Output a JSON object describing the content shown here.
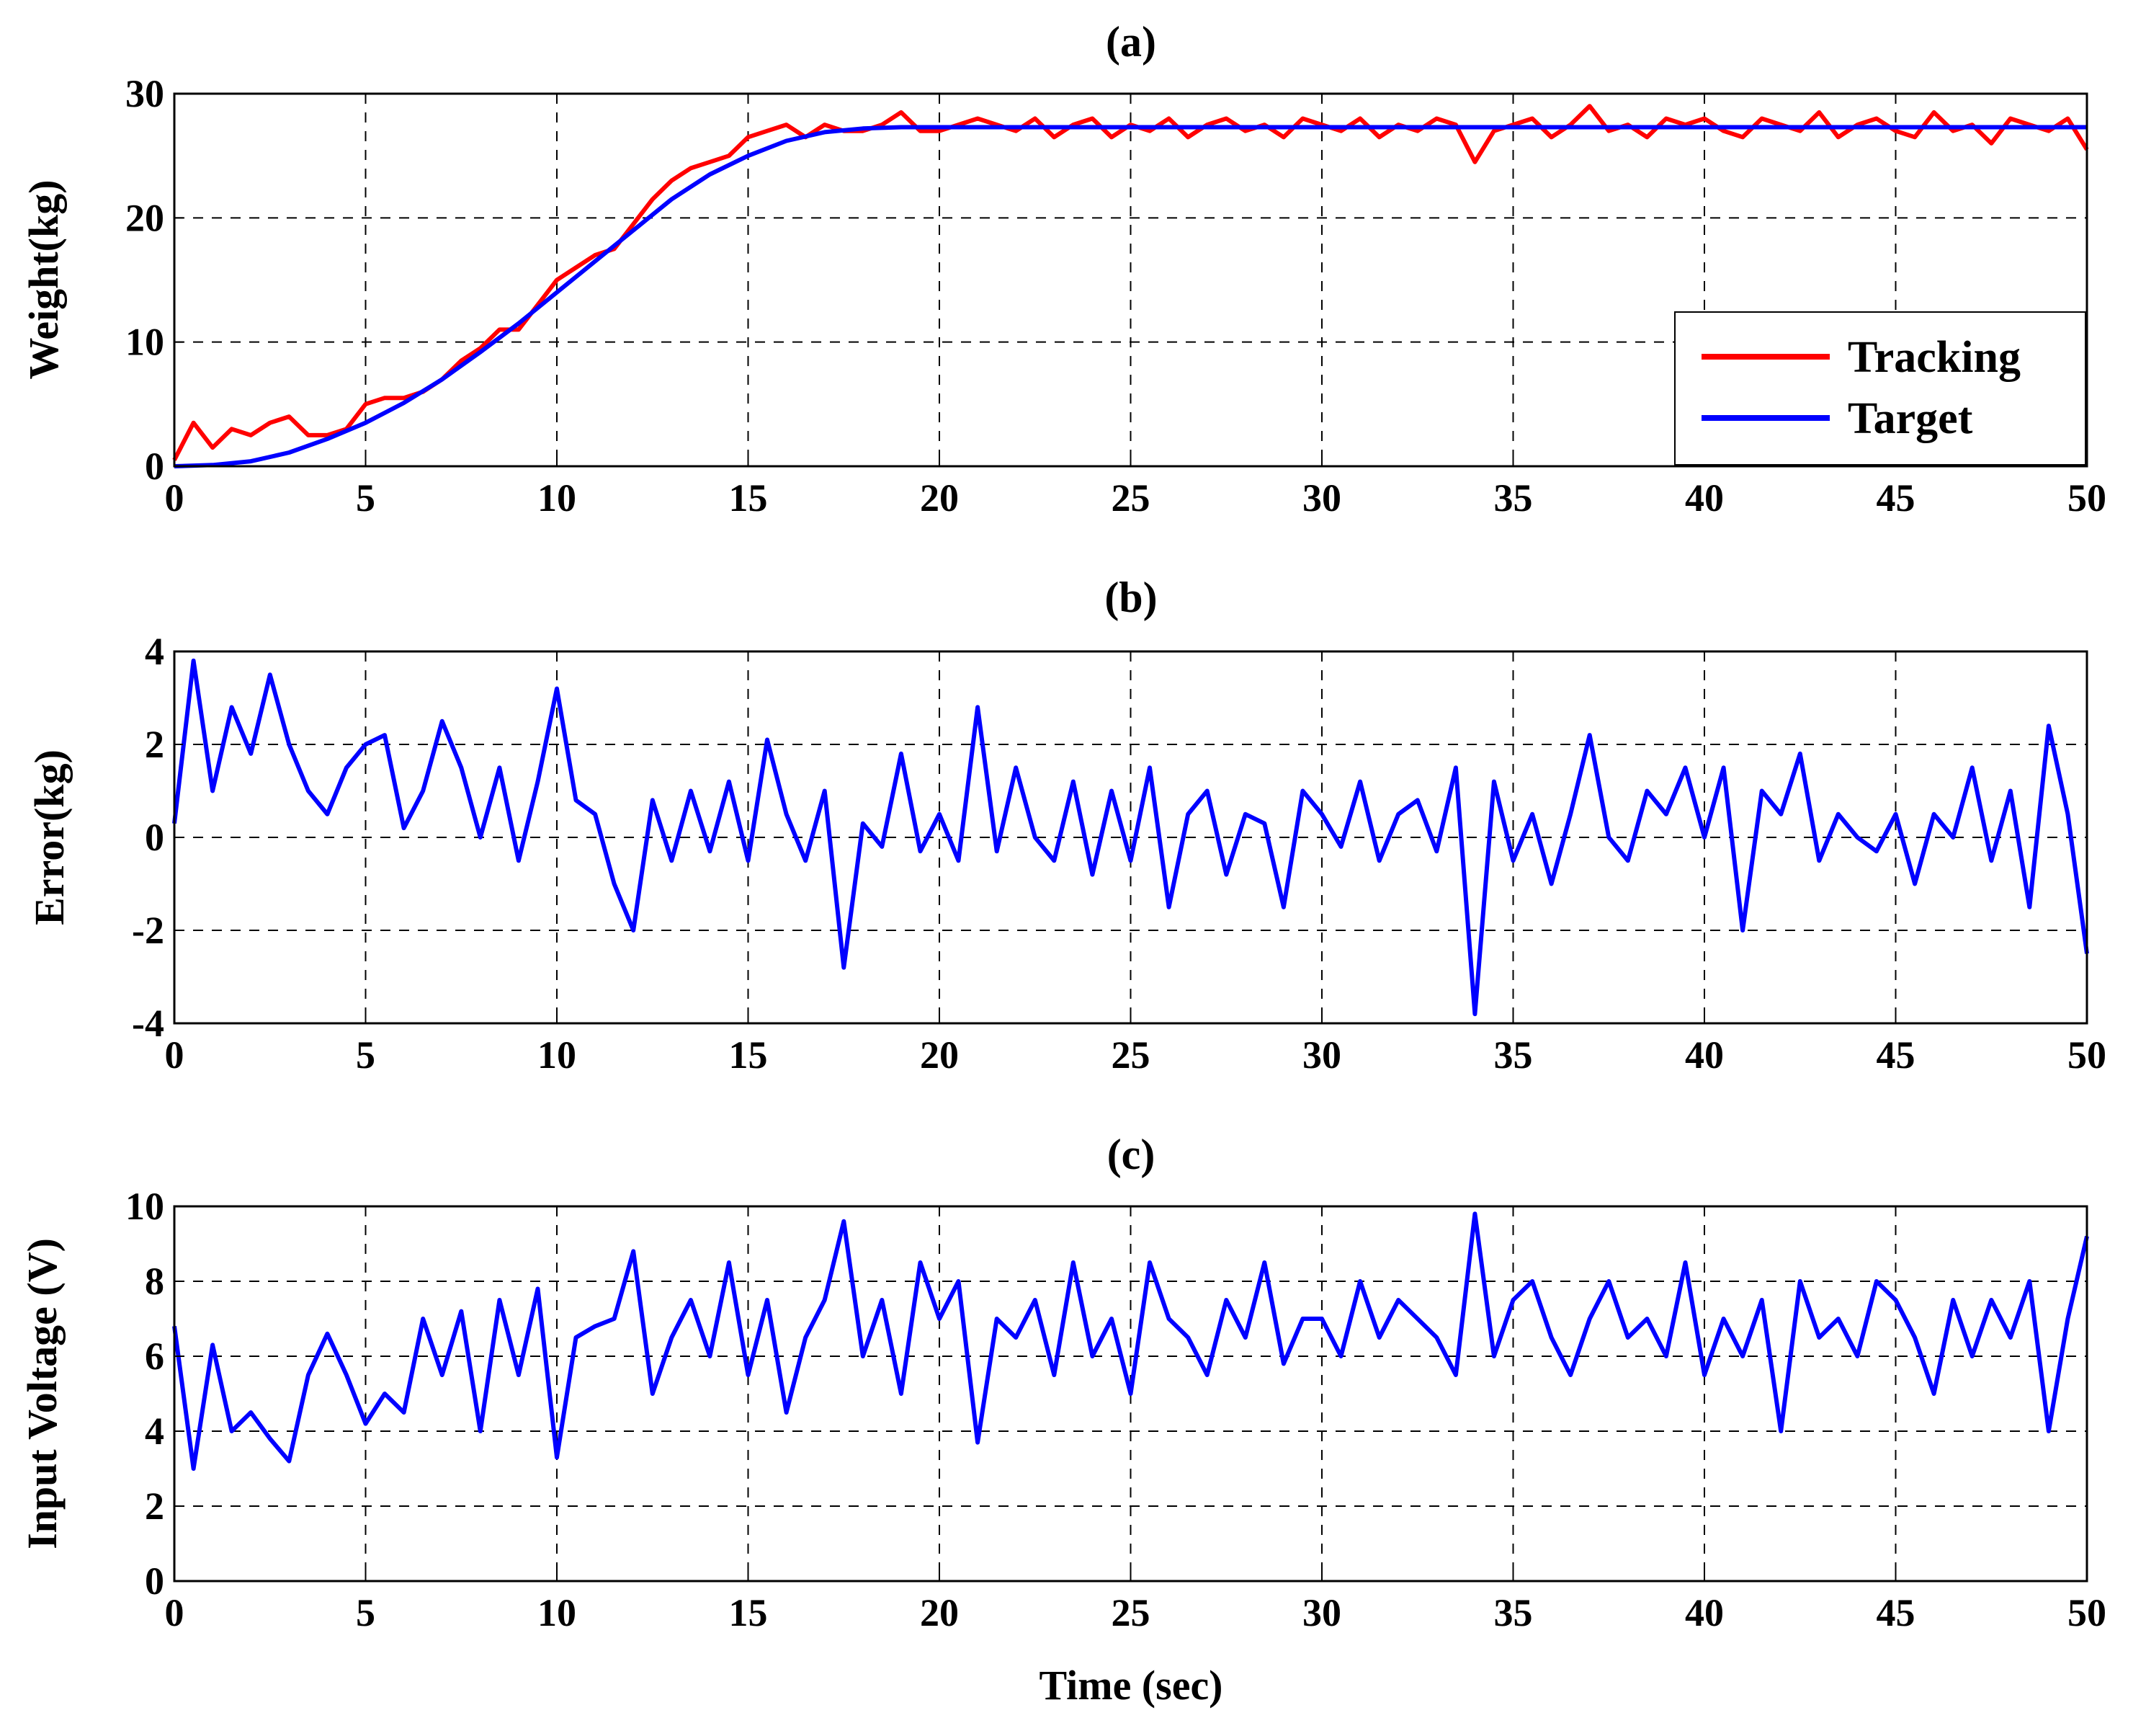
{
  "chart_data": [
    {
      "type": "line",
      "title": "(a)",
      "xlabel": "",
      "ylabel": "Weight(kg)",
      "xlim": [
        0,
        50
      ],
      "ylim": [
        0,
        30
      ],
      "xticks": [
        "0",
        "5",
        "10",
        "15",
        "20",
        "25",
        "30",
        "35",
        "40",
        "45",
        "50"
      ],
      "yticks": [
        "0",
        "10",
        "20",
        "30"
      ],
      "grid": true,
      "legend_position": "bottom-right",
      "series": [
        {
          "name": "Tracking",
          "color": "#ff0000",
          "x": [
            0,
            0.5,
            1,
            1.5,
            2,
            2.5,
            3,
            3.5,
            4,
            4.5,
            5,
            5.5,
            6,
            6.5,
            7,
            7.5,
            8,
            8.5,
            9,
            9.5,
            10,
            10.5,
            11,
            11.5,
            12,
            12.5,
            13,
            13.5,
            14,
            14.5,
            15,
            15.5,
            16,
            16.5,
            17,
            17.5,
            18,
            18.5,
            19,
            19.5,
            20,
            20.5,
            21,
            21.5,
            22,
            22.5,
            23,
            23.5,
            24,
            24.5,
            25,
            25.5,
            26,
            26.5,
            27,
            27.5,
            28,
            28.5,
            29,
            29.5,
            30,
            30.5,
            31,
            31.5,
            32,
            32.5,
            33,
            33.5,
            34,
            34.5,
            35,
            35.5,
            36,
            36.5,
            37,
            37.5,
            38,
            38.5,
            39,
            39.5,
            40,
            40.5,
            41,
            41.5,
            42,
            42.5,
            43,
            43.5,
            44,
            44.5,
            45,
            45.5,
            46,
            46.5,
            47,
            47.5,
            48,
            48.5,
            49,
            49.5,
            50
          ],
          "y": [
            0.5,
            3.5,
            1.5,
            3,
            2.5,
            3.5,
            4,
            2.5,
            2.5,
            3,
            5,
            5.5,
            5.5,
            6,
            7,
            8.5,
            9.5,
            11,
            11,
            13,
            15,
            16,
            17,
            17.5,
            19.5,
            21.5,
            23,
            24,
            24.5,
            25,
            26.5,
            27,
            27.5,
            26.5,
            27.5,
            27,
            27,
            27.5,
            28.5,
            27,
            27,
            27.5,
            28,
            27.5,
            27,
            28,
            26.5,
            27.5,
            28,
            26.5,
            27.5,
            27,
            28,
            26.5,
            27.5,
            28,
            27,
            27.5,
            26.5,
            28,
            27.5,
            27,
            28,
            26.5,
            27.5,
            27,
            28,
            27.5,
            24.5,
            27,
            27.5,
            28,
            26.5,
            27.5,
            29,
            27,
            27.5,
            26.5,
            28,
            27.5,
            28,
            27,
            26.5,
            28,
            27.5,
            27,
            28.5,
            26.5,
            27.5,
            28,
            27,
            26.5,
            28.5,
            27,
            27.5,
            26,
            28,
            27.5,
            27,
            28,
            25.5
          ]
        },
        {
          "name": "Target",
          "color": "#0000ff",
          "x": [
            0,
            1,
            2,
            3,
            4,
            5,
            6,
            7,
            8,
            9,
            10,
            11,
            12,
            13,
            14,
            15,
            16,
            17,
            18,
            19,
            20,
            25,
            30,
            35,
            40,
            45,
            50
          ],
          "y": [
            0,
            0.1,
            0.4,
            1.1,
            2.2,
            3.5,
            5.1,
            7,
            9.2,
            11.5,
            14,
            16.5,
            19,
            21.5,
            23.5,
            25,
            26.2,
            26.9,
            27.2,
            27.3,
            27.3,
            27.3,
            27.3,
            27.3,
            27.3,
            27.3,
            27.3
          ]
        }
      ]
    },
    {
      "type": "line",
      "title": "(b)",
      "xlabel": "",
      "ylabel": "Error(kg)",
      "xlim": [
        0,
        50
      ],
      "ylim": [
        -4,
        4
      ],
      "xticks": [
        "0",
        "5",
        "10",
        "15",
        "20",
        "25",
        "30",
        "35",
        "40",
        "45",
        "50"
      ],
      "yticks": [
        "-4",
        "-2",
        "0",
        "2",
        "4"
      ],
      "grid": true,
      "series": [
        {
          "color": "#0000ff",
          "x": [
            0,
            0.5,
            1,
            1.5,
            2,
            2.5,
            3,
            3.5,
            4,
            4.5,
            5,
            5.5,
            6,
            6.5,
            7,
            7.5,
            8,
            8.5,
            9,
            9.5,
            10,
            10.5,
            11,
            11.5,
            12,
            12.5,
            13,
            13.5,
            14,
            14.5,
            15,
            15.5,
            16,
            16.5,
            17,
            17.5,
            18,
            18.5,
            19,
            19.5,
            20,
            20.5,
            21,
            21.5,
            22,
            22.5,
            23,
            23.5,
            24,
            24.5,
            25,
            25.5,
            26,
            26.5,
            27,
            27.5,
            28,
            28.5,
            29,
            29.5,
            30,
            30.5,
            31,
            31.5,
            32,
            32.5,
            33,
            33.5,
            34,
            34.5,
            35,
            35.5,
            36,
            36.5,
            37,
            37.5,
            38,
            38.5,
            39,
            39.5,
            40,
            40.5,
            41,
            41.5,
            42,
            42.5,
            43,
            43.5,
            44,
            44.5,
            45,
            45.5,
            46,
            46.5,
            47,
            47.5,
            48,
            48.5,
            49,
            49.5,
            50
          ],
          "y": [
            0.3,
            3.8,
            1,
            2.8,
            1.8,
            3.5,
            2,
            1,
            0.5,
            1.5,
            2,
            2.2,
            0.2,
            1,
            2.5,
            1.5,
            0,
            1.5,
            -0.5,
            1.2,
            3.2,
            0.8,
            0.5,
            -1,
            -2,
            0.8,
            -0.5,
            1,
            -0.3,
            1.2,
            -0.5,
            2.1,
            0.5,
            -0.5,
            1,
            -2.8,
            0.3,
            -0.2,
            1.8,
            -0.3,
            0.5,
            -0.5,
            2.8,
            -0.3,
            1.5,
            0,
            -0.5,
            1.2,
            -0.8,
            1,
            -0.5,
            1.5,
            -1.5,
            0.5,
            1,
            -0.8,
            0.5,
            0.3,
            -1.5,
            1,
            0.5,
            -0.2,
            1.2,
            -0.5,
            0.5,
            0.8,
            -0.3,
            1.5,
            -3.8,
            1.2,
            -0.5,
            0.5,
            -1,
            0.5,
            2.2,
            0,
            -0.5,
            1,
            0.5,
            1.5,
            0,
            1.5,
            -2,
            1,
            0.5,
            1.8,
            -0.5,
            0.5,
            0,
            -0.3,
            0.5,
            -1,
            0.5,
            0,
            1.5,
            -0.5,
            1,
            -1.5,
            2.4,
            0.5,
            -2.5
          ]
        }
      ]
    },
    {
      "type": "line",
      "title": "(c)",
      "xlabel": "Time (sec)",
      "ylabel": "Input Voltage (V)",
      "xlim": [
        0,
        50
      ],
      "ylim": [
        0,
        10
      ],
      "xticks": [
        "0",
        "5",
        "10",
        "15",
        "20",
        "25",
        "30",
        "35",
        "40",
        "45",
        "50"
      ],
      "yticks": [
        "0",
        "2",
        "4",
        "6",
        "8",
        "10"
      ],
      "grid": true,
      "series": [
        {
          "color": "#0000ff",
          "x": [
            0,
            0.5,
            1,
            1.5,
            2,
            2.5,
            3,
            3.5,
            4,
            4.5,
            5,
            5.5,
            6,
            6.5,
            7,
            7.5,
            8,
            8.5,
            9,
            9.5,
            10,
            10.5,
            11,
            11.5,
            12,
            12.5,
            13,
            13.5,
            14,
            14.5,
            15,
            15.5,
            16,
            16.5,
            17,
            17.5,
            18,
            18.5,
            19,
            19.5,
            20,
            20.5,
            21,
            21.5,
            22,
            22.5,
            23,
            23.5,
            24,
            24.5,
            25,
            25.5,
            26,
            26.5,
            27,
            27.5,
            28,
            28.5,
            29,
            29.5,
            30,
            30.5,
            31,
            31.5,
            32,
            32.5,
            33,
            33.5,
            34,
            34.5,
            35,
            35.5,
            36,
            36.5,
            37,
            37.5,
            38,
            38.5,
            39,
            39.5,
            40,
            40.5,
            41,
            41.5,
            42,
            42.5,
            43,
            43.5,
            44,
            44.5,
            45,
            45.5,
            46,
            46.5,
            47,
            47.5,
            48,
            48.5,
            49,
            49.5,
            50
          ],
          "y": [
            6.8,
            3,
            6.3,
            4,
            4.5,
            3.8,
            3.2,
            5.5,
            6.6,
            5.5,
            4.2,
            5,
            4.5,
            7,
            5.5,
            7.2,
            4,
            7.5,
            5.5,
            7.8,
            3.3,
            6.5,
            6.8,
            7,
            8.8,
            5,
            6.5,
            7.5,
            6,
            8.5,
            5.5,
            7.5,
            4.5,
            6.5,
            7.5,
            9.6,
            6,
            7.5,
            5,
            8.5,
            7,
            8,
            3.7,
            7,
            6.5,
            7.5,
            5.5,
            8.5,
            6,
            7,
            5,
            8.5,
            7,
            6.5,
            5.5,
            7.5,
            6.5,
            8.5,
            5.8,
            7,
            7,
            6,
            8,
            6.5,
            7.5,
            7,
            6.5,
            5.5,
            9.8,
            6,
            7.5,
            8,
            6.5,
            5.5,
            7,
            8,
            6.5,
            7,
            6,
            8.5,
            5.5,
            7,
            6,
            7.5,
            4,
            8,
            6.5,
            7,
            6,
            8,
            7.5,
            6.5,
            5,
            7.5,
            6,
            7.5,
            6.5,
            8,
            4,
            7,
            9.2
          ]
        }
      ]
    }
  ]
}
